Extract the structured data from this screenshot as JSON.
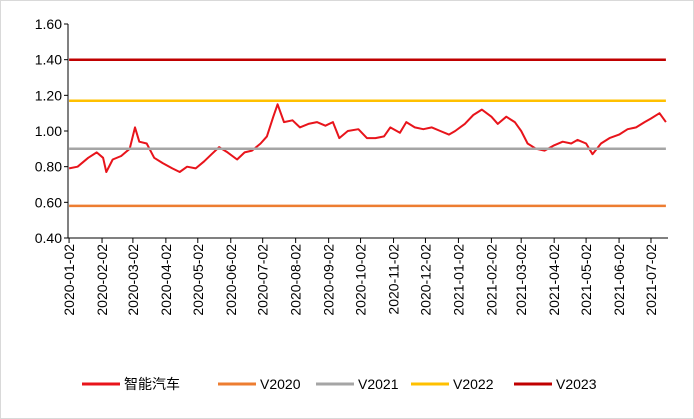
{
  "chart_data": {
    "type": "line",
    "x": [
      "2020-01-02",
      "2020-01-10",
      "2020-01-20",
      "2020-01-28",
      "2020-02-03",
      "2020-02-06",
      "2020-02-12",
      "2020-02-20",
      "2020-02-28",
      "2020-03-04",
      "2020-03-08",
      "2020-03-15",
      "2020-03-22",
      "2020-03-30",
      "2020-04-08",
      "2020-04-15",
      "2020-04-22",
      "2020-04-30",
      "2020-05-08",
      "2020-05-15",
      "2020-05-22",
      "2020-05-30",
      "2020-06-08",
      "2020-06-15",
      "2020-06-22",
      "2020-06-30",
      "2020-07-06",
      "2020-07-12",
      "2020-07-16",
      "2020-07-22",
      "2020-07-30",
      "2020-08-06",
      "2020-08-14",
      "2020-08-22",
      "2020-08-30",
      "2020-09-06",
      "2020-09-12",
      "2020-09-20",
      "2020-09-30",
      "2020-10-08",
      "2020-10-16",
      "2020-10-24",
      "2020-10-30",
      "2020-11-08",
      "2020-11-14",
      "2020-11-22",
      "2020-11-30",
      "2020-12-08",
      "2020-12-16",
      "2020-12-24",
      "2020-12-30",
      "2021-01-08",
      "2021-01-16",
      "2021-01-24",
      "2021-02-02",
      "2021-02-08",
      "2021-02-16",
      "2021-02-24",
      "2021-03-02",
      "2021-03-08",
      "2021-03-16",
      "2021-03-24",
      "2021-04-02",
      "2021-04-10",
      "2021-04-18",
      "2021-04-24",
      "2021-05-02",
      "2021-05-08",
      "2021-05-16",
      "2021-05-24",
      "2021-06-02",
      "2021-06-10",
      "2021-06-18",
      "2021-06-26",
      "2021-07-02",
      "2021-07-10",
      "2021-07-16"
    ],
    "series": [
      {
        "name": "智能汽车",
        "color": "#e8141b",
        "values": [
          0.79,
          0.8,
          0.85,
          0.88,
          0.85,
          0.77,
          0.84,
          0.86,
          0.9,
          1.02,
          0.94,
          0.93,
          0.85,
          0.82,
          0.79,
          0.77,
          0.8,
          0.79,
          0.83,
          0.87,
          0.91,
          0.88,
          0.84,
          0.88,
          0.89,
          0.93,
          0.97,
          1.08,
          1.15,
          1.05,
          1.06,
          1.02,
          1.04,
          1.05,
          1.03,
          1.05,
          0.96,
          1.0,
          1.01,
          0.96,
          0.96,
          0.97,
          1.02,
          0.99,
          1.05,
          1.02,
          1.01,
          1.02,
          1.0,
          0.98,
          1.0,
          1.04,
          1.09,
          1.12,
          1.08,
          1.04,
          1.08,
          1.05,
          1.0,
          0.93,
          0.9,
          0.89,
          0.92,
          0.94,
          0.93,
          0.95,
          0.93,
          0.87,
          0.93,
          0.96,
          0.98,
          1.01,
          1.02,
          1.05,
          1.07,
          1.1,
          1.05
        ]
      },
      {
        "name": "V2020",
        "color": "#ed7d31",
        "values": [
          0.58,
          0.58,
          0.58,
          0.58,
          0.58,
          0.58,
          0.58,
          0.58,
          0.58,
          0.58,
          0.58,
          0.58,
          0.58,
          0.58,
          0.58,
          0.58,
          0.58,
          0.58,
          0.58,
          0.58,
          0.58,
          0.58,
          0.58,
          0.58,
          0.58,
          0.58,
          0.58,
          0.58,
          0.58,
          0.58,
          0.58,
          0.58,
          0.58,
          0.58,
          0.58,
          0.58,
          0.58,
          0.58,
          0.58,
          0.58,
          0.58,
          0.58,
          0.58,
          0.58,
          0.58,
          0.58,
          0.58,
          0.58,
          0.58,
          0.58,
          0.58,
          0.58,
          0.58,
          0.58,
          0.58,
          0.58,
          0.58,
          0.58,
          0.58,
          0.58,
          0.58,
          0.58,
          0.58,
          0.58,
          0.58,
          0.58,
          0.58,
          0.58,
          0.58,
          0.58,
          0.58,
          0.58,
          0.58,
          0.58,
          0.58,
          0.58,
          0.58
        ]
      },
      {
        "name": "V2021",
        "color": "#a5a5a5",
        "values": [
          0.9,
          0.9,
          0.9,
          0.9,
          0.9,
          0.9,
          0.9,
          0.9,
          0.9,
          0.9,
          0.9,
          0.9,
          0.9,
          0.9,
          0.9,
          0.9,
          0.9,
          0.9,
          0.9,
          0.9,
          0.9,
          0.9,
          0.9,
          0.9,
          0.9,
          0.9,
          0.9,
          0.9,
          0.9,
          0.9,
          0.9,
          0.9,
          0.9,
          0.9,
          0.9,
          0.9,
          0.9,
          0.9,
          0.9,
          0.9,
          0.9,
          0.9,
          0.9,
          0.9,
          0.9,
          0.9,
          0.9,
          0.9,
          0.9,
          0.9,
          0.9,
          0.9,
          0.9,
          0.9,
          0.9,
          0.9,
          0.9,
          0.9,
          0.9,
          0.9,
          0.9,
          0.9,
          0.9,
          0.9,
          0.9,
          0.9,
          0.9,
          0.9,
          0.9,
          0.9,
          0.9,
          0.9,
          0.9,
          0.9,
          0.9,
          0.9,
          0.9
        ]
      },
      {
        "name": "V2022",
        "color": "#ffc000",
        "values": [
          1.17,
          1.17,
          1.17,
          1.17,
          1.17,
          1.17,
          1.17,
          1.17,
          1.17,
          1.17,
          1.17,
          1.17,
          1.17,
          1.17,
          1.17,
          1.17,
          1.17,
          1.17,
          1.17,
          1.17,
          1.17,
          1.17,
          1.17,
          1.17,
          1.17,
          1.17,
          1.17,
          1.17,
          1.17,
          1.17,
          1.17,
          1.17,
          1.17,
          1.17,
          1.17,
          1.17,
          1.17,
          1.17,
          1.17,
          1.17,
          1.17,
          1.17,
          1.17,
          1.17,
          1.17,
          1.17,
          1.17,
          1.17,
          1.17,
          1.17,
          1.17,
          1.17,
          1.17,
          1.17,
          1.17,
          1.17,
          1.17,
          1.17,
          1.17,
          1.17,
          1.17,
          1.17,
          1.17,
          1.17,
          1.17,
          1.17,
          1.17,
          1.17,
          1.17,
          1.17,
          1.17,
          1.17,
          1.17,
          1.17,
          1.17,
          1.17,
          1.17
        ]
      },
      {
        "name": "V2023",
        "color": "#c00000",
        "values": [
          1.4,
          1.4,
          1.4,
          1.4,
          1.4,
          1.4,
          1.4,
          1.4,
          1.4,
          1.4,
          1.4,
          1.4,
          1.4,
          1.4,
          1.4,
          1.4,
          1.4,
          1.4,
          1.4,
          1.4,
          1.4,
          1.4,
          1.4,
          1.4,
          1.4,
          1.4,
          1.4,
          1.4,
          1.4,
          1.4,
          1.4,
          1.4,
          1.4,
          1.4,
          1.4,
          1.4,
          1.4,
          1.4,
          1.4,
          1.4,
          1.4,
          1.4,
          1.4,
          1.4,
          1.4,
          1.4,
          1.4,
          1.4,
          1.4,
          1.4,
          1.4,
          1.4,
          1.4,
          1.4,
          1.4,
          1.4,
          1.4,
          1.4,
          1.4,
          1.4,
          1.4,
          1.4,
          1.4,
          1.4,
          1.4,
          1.4,
          1.4,
          1.4,
          1.4,
          1.4,
          1.4,
          1.4,
          1.4,
          1.4,
          1.4,
          1.4,
          1.4
        ]
      }
    ],
    "xlim": [
      "2020-01-01",
      "2021-07-18"
    ],
    "xticks": [
      "2020-01-02",
      "2020-02-02",
      "2020-03-02",
      "2020-04-02",
      "2020-05-02",
      "2020-06-02",
      "2020-07-02",
      "2020-08-02",
      "2020-09-02",
      "2020-10-02",
      "2020-11-02",
      "2020-12-02",
      "2021-01-02",
      "2021-02-02",
      "2021-03-02",
      "2021-04-02",
      "2021-05-02",
      "2021-06-02",
      "2021-07-02"
    ],
    "ylim": [
      0.4,
      1.6
    ],
    "yticks": [
      {
        "value": 0.4,
        "label": "0.40"
      },
      {
        "value": 0.6,
        "label": "0.60"
      },
      {
        "value": 0.8,
        "label": "0.80"
      },
      {
        "value": 1.0,
        "label": "1.00"
      },
      {
        "value": 1.2,
        "label": "1.20"
      },
      {
        "value": 1.4,
        "label": "1.40"
      },
      {
        "value": 1.6,
        "label": "1.60"
      }
    ],
    "grid": false,
    "legend": "bottom"
  }
}
